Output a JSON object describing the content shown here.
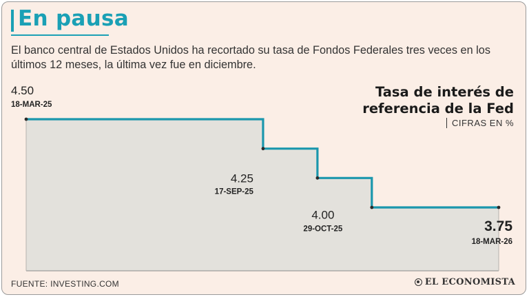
{
  "header": {
    "title": "En pausa",
    "subtitle": "El banco central de Estados Unidos ha recortado su tasa de Fondos Federales tres veces en los últimos 12 meses, la última vez fue en diciembre."
  },
  "chart_data": {
    "type": "line",
    "step": true,
    "title_lines": [
      "Tasa de interés de",
      "referencia de la Fed"
    ],
    "unit_label": "CIFRAS EN %",
    "x_start": "2025-03-18",
    "x_end": "2026-03-18",
    "ylim": [
      3.5,
      4.7
    ],
    "series": [
      {
        "name": "",
        "color": "#1b97ad",
        "fill": "#e3e1dc",
        "points": [
          {
            "date": "2025-03-18",
            "value": 4.5,
            "value_label": "4.50",
            "date_label": "18-MAR-25"
          },
          {
            "date": "2025-09-17",
            "value": 4.25,
            "value_label": "4.25",
            "date_label": "17-SEP-25"
          },
          {
            "date": "2025-10-29",
            "value": 4.0,
            "value_label": "4.00",
            "date_label": "29-OCT-25"
          },
          {
            "date": "2025-12-10",
            "value": 3.75,
            "value_label": "",
            "date_label": ""
          },
          {
            "date": "2026-03-18",
            "value": 3.75,
            "value_label": "3.75",
            "date_label": "18-MAR-26"
          }
        ]
      }
    ]
  },
  "footer": {
    "source": "FUENTE: INVESTING.COM",
    "logo_text": "EL ECONOMISTA"
  }
}
